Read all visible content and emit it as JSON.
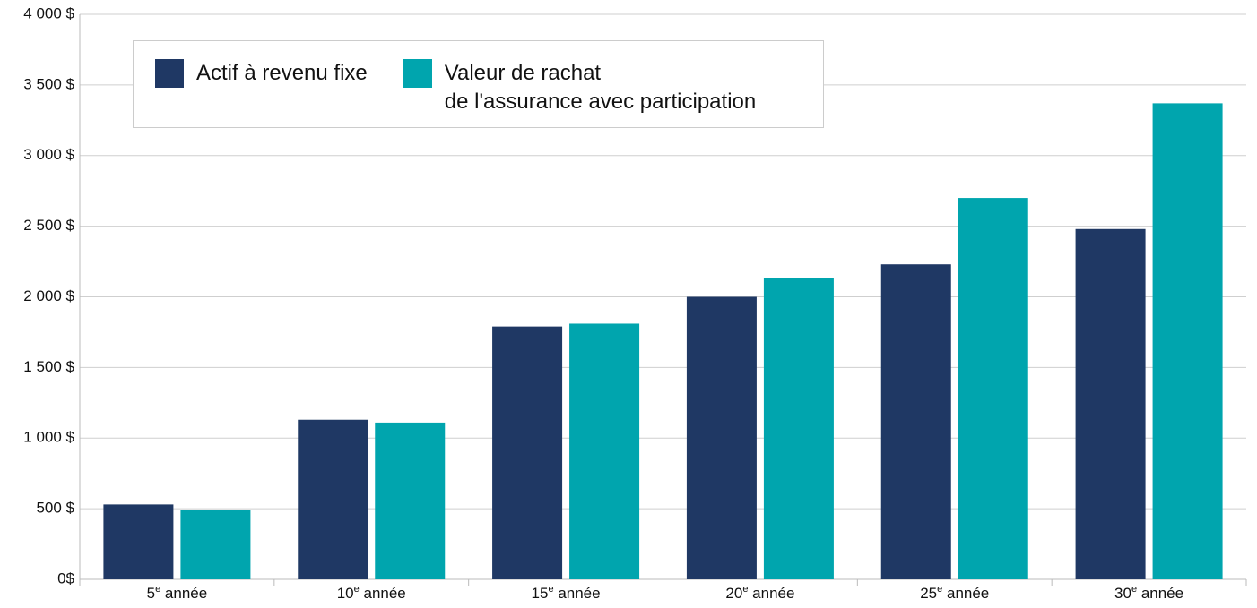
{
  "chart_data": {
    "type": "bar",
    "categories": [
      "5e année",
      "10e année",
      "15e année",
      "20e année",
      "25e année",
      "30e année"
    ],
    "series": [
      {
        "name": "Actif à revenu fixe",
        "color": "#1f3864",
        "values": [
          530,
          1130,
          1790,
          2000,
          2230,
          2480
        ]
      },
      {
        "name": "Valeur de rachat\nde l'assurance avec participation",
        "color": "#00a5ae",
        "values": [
          490,
          1110,
          1810,
          2130,
          2700,
          3370
        ]
      }
    ],
    "ylim": [
      0,
      4000
    ],
    "yticks": [
      {
        "value": 0,
        "label": "0$"
      },
      {
        "value": 500,
        "label": "500 $"
      },
      {
        "value": 1000,
        "label": "1 000 $"
      },
      {
        "value": 1500,
        "label": "1 500 $"
      },
      {
        "value": 2000,
        "label": "2 000 $"
      },
      {
        "value": 2500,
        "label": "2 500 $"
      },
      {
        "value": 3000,
        "label": "3 000 $"
      },
      {
        "value": 3500,
        "label": "3 500 $"
      },
      {
        "value": 4000,
        "label": "4 000 $"
      }
    ],
    "grid": true
  }
}
